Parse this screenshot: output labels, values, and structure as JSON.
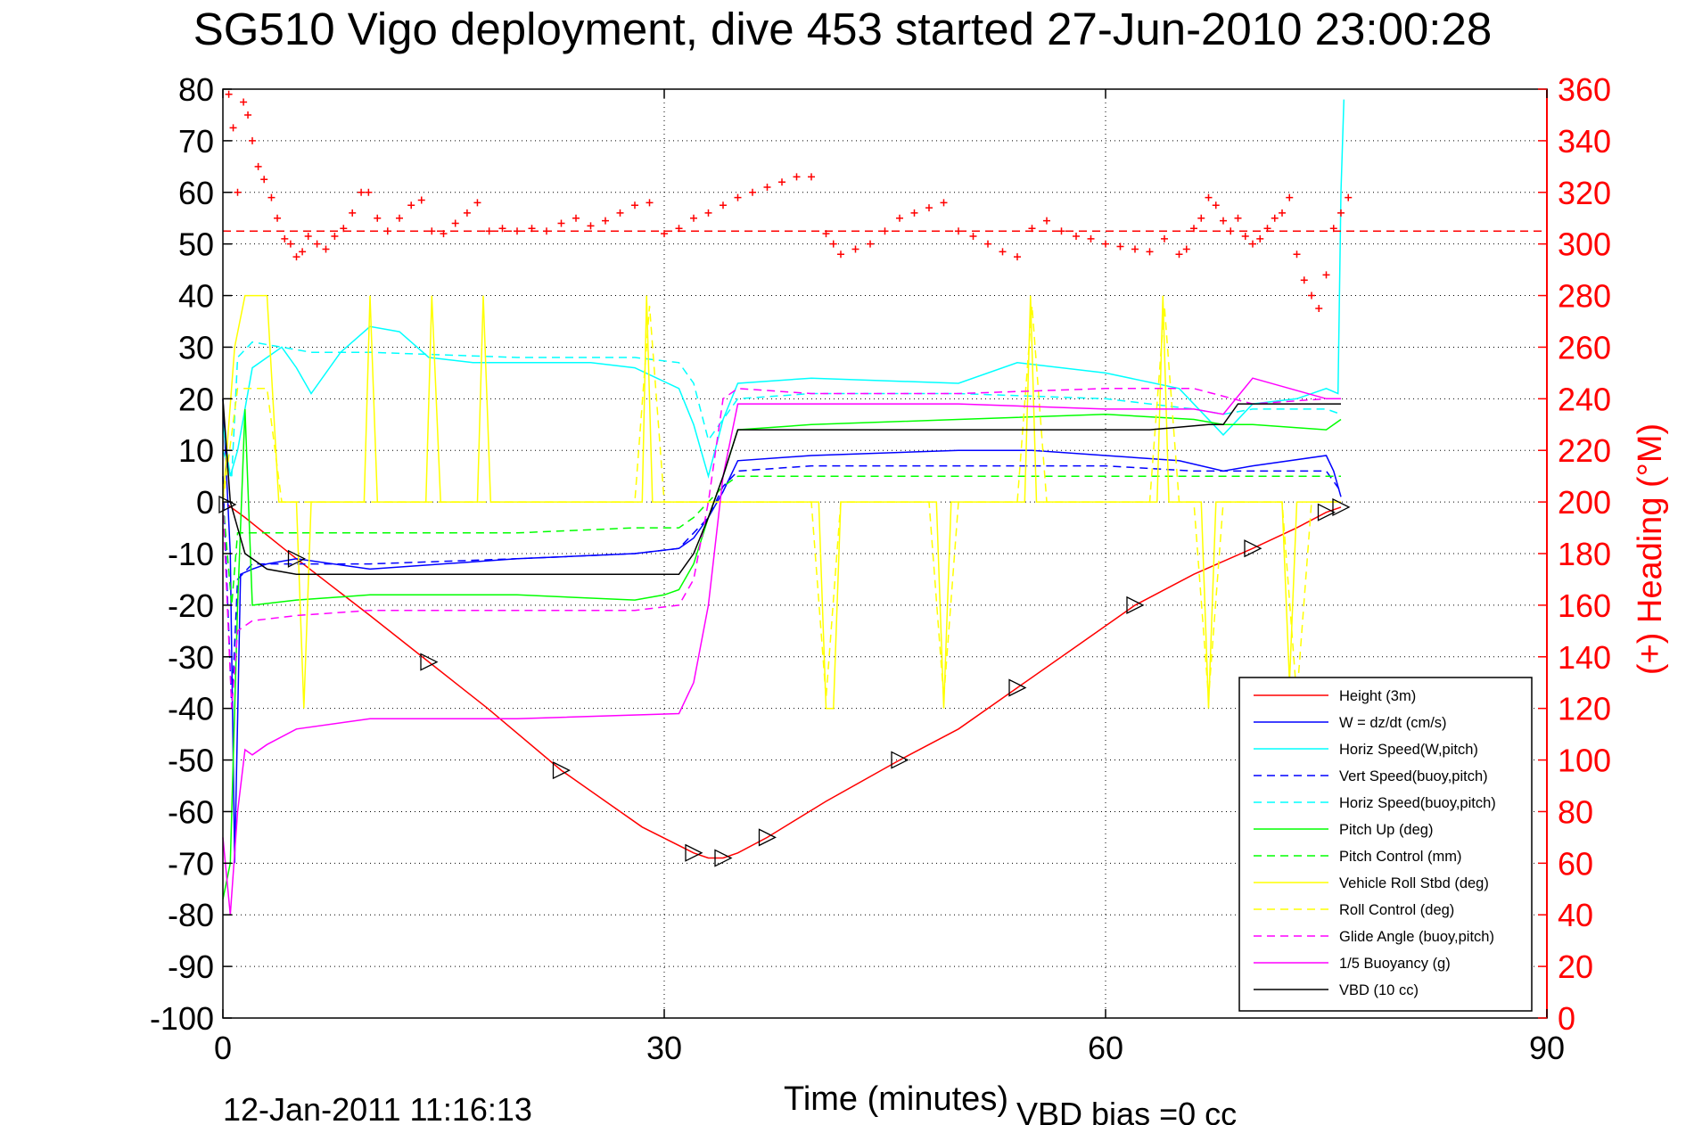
{
  "chart_data": {
    "type": "line",
    "title": "SG510 Vigo deployment, dive 453 started 27-Jun-2010 23:00:28",
    "xlabel": "Time (minutes)",
    "ylabel": "",
    "y2label": "(+) Heading (°M)",
    "xlim": [
      0,
      90
    ],
    "ylim": [
      -100,
      80
    ],
    "y2lim": [
      0,
      360
    ],
    "xticks": [
      0,
      30,
      60,
      90
    ],
    "yticks": [
      80,
      70,
      60,
      50,
      40,
      30,
      20,
      10,
      0,
      -10,
      -20,
      -30,
      -40,
      -50,
      -60,
      -70,
      -80,
      -90,
      -100
    ],
    "y2ticks": [
      360,
      340,
      320,
      300,
      280,
      260,
      240,
      220,
      200,
      180,
      160,
      140,
      120,
      100,
      80,
      60,
      40,
      20,
      0
    ],
    "grid": "dotted",
    "legend_position": "lower-right",
    "footer_left": "12-Jan-2011 11:16:13",
    "footer_right": "VBD bias =0 cc",
    "heading_mean": 305,
    "series": [
      {
        "name": "Height (3m)",
        "color": "#ff0000",
        "style": "solid",
        "x": [
          0.3,
          1.5,
          5,
          10,
          14,
          18,
          23,
          28.5,
          32,
          33,
          34,
          35,
          37,
          41,
          46,
          50,
          54,
          58,
          62,
          66,
          70,
          73,
          75,
          76
        ],
        "y": [
          -0.5,
          -3,
          -11,
          -22,
          -31,
          -40,
          -52,
          -63,
          -68,
          -69,
          -69,
          -68,
          -65,
          -58,
          -50,
          -44,
          -36,
          -28,
          -20,
          -14,
          -9,
          -5,
          -2,
          -1
        ]
      },
      {
        "name": "W = dz/dt (cm/s)",
        "color": "#0000ff",
        "style": "solid",
        "x": [
          0,
          0.5,
          0.8,
          1.2,
          2,
          3,
          5,
          10,
          20,
          28,
          31,
          32,
          33,
          34,
          35,
          40,
          50,
          55,
          60,
          65,
          68,
          70,
          75,
          75.5,
          76
        ],
        "y": [
          20,
          -10,
          -70,
          -14,
          -13,
          -12,
          -11,
          -13,
          -11,
          -10,
          -9,
          -7,
          -3,
          2,
          8,
          9,
          10,
          10,
          9,
          8,
          6,
          7,
          9,
          6,
          1
        ]
      },
      {
        "name": "Horiz Speed(W,pitch)",
        "color": "#00ffff",
        "style": "solid",
        "x": [
          0,
          0.5,
          1,
          2,
          4,
          5,
          6,
          8,
          10,
          12,
          14,
          17,
          20,
          25,
          28,
          31,
          32,
          33,
          34,
          35,
          40,
          50,
          54,
          60,
          65,
          68,
          70,
          73,
          75,
          75.8,
          76,
          76.2
        ],
        "y": [
          15,
          5,
          10,
          26,
          30,
          26,
          21,
          29,
          34,
          33,
          28,
          27,
          27,
          27,
          26,
          22,
          15,
          5,
          16,
          23,
          24,
          23,
          27,
          25,
          22,
          13,
          19,
          20,
          22,
          21,
          60,
          78
        ]
      },
      {
        "name": "Vert Speed(buoy,pitch)",
        "color": "#0000ff",
        "style": "dashed",
        "x": [
          0,
          0.6,
          1,
          2,
          5,
          10,
          20,
          28,
          31,
          33,
          34,
          35,
          40,
          50,
          60,
          66,
          70,
          75,
          76
        ],
        "y": [
          5,
          -40,
          -15,
          -12,
          -12,
          -12,
          -11,
          -10,
          -9,
          -3,
          3,
          6,
          7,
          7,
          7,
          6,
          6,
          6,
          2
        ]
      },
      {
        "name": "Horiz Speed(buoy,pitch)",
        "color": "#00ffff",
        "style": "dashed",
        "x": [
          0,
          0.6,
          1,
          2,
          4,
          6,
          10,
          20,
          28,
          31,
          32,
          33,
          34,
          35,
          40,
          50,
          60,
          66,
          68,
          70,
          75,
          76
        ],
        "y": [
          10,
          5,
          28,
          31,
          30,
          29,
          29,
          28,
          28,
          27,
          23,
          12,
          16,
          20,
          21,
          21,
          20,
          18,
          17,
          18,
          18,
          17
        ]
      },
      {
        "name": "Pitch Up (deg)",
        "color": "#00ff00",
        "style": "solid",
        "x": [
          0,
          0.5,
          1,
          1.5,
          2,
          5,
          10,
          20,
          28,
          30,
          31,
          32,
          33,
          34,
          35,
          40,
          50,
          60,
          66,
          68,
          70,
          75,
          76
        ],
        "y": [
          -77,
          -70,
          -20,
          18,
          -20,
          -19,
          -18,
          -18,
          -19,
          -18,
          -17,
          -12,
          -3,
          5,
          14,
          15,
          16,
          17,
          16,
          15,
          15,
          14,
          16
        ]
      },
      {
        "name": "Pitch Control (mm)",
        "color": "#00ff00",
        "style": "dashed",
        "x": [
          0,
          0.6,
          1,
          2,
          5,
          10,
          20,
          28,
          31,
          32,
          33,
          34,
          35,
          40,
          50,
          60,
          66,
          70,
          75,
          76
        ],
        "y": [
          0,
          -20,
          -6,
          -6,
          -6,
          -6,
          -6,
          -5,
          -5,
          -3,
          0,
          3,
          5,
          5,
          5,
          5,
          5,
          5,
          5,
          5
        ]
      },
      {
        "name": "Vehicle Roll Stbd (deg)",
        "color": "#ffff00",
        "style": "solid",
        "x": [
          0,
          0.8,
          1.5,
          3,
          3.8,
          4.3,
          5,
          5.5,
          6,
          9.6,
          10,
          10.5,
          11,
          13.8,
          14.2,
          14.8,
          17.3,
          17.7,
          18.2,
          28.5,
          28.8,
          29.2,
          32,
          33,
          34,
          40.5,
          41,
          41.5,
          42,
          48.5,
          49,
          49.5,
          54.5,
          54.9,
          55.3,
          63.5,
          63.9,
          64.3,
          66.5,
          67,
          67.5,
          72,
          72.5,
          73,
          76
        ],
        "y": [
          0,
          30,
          40,
          40,
          0,
          0,
          0,
          -40,
          0,
          0,
          40,
          0,
          0,
          0,
          40,
          0,
          0,
          40,
          0,
          0,
          40,
          0,
          0,
          0,
          0,
          0,
          -40,
          -40,
          0,
          0,
          -40,
          0,
          0,
          40,
          0,
          0,
          40,
          0,
          0,
          -40,
          0,
          0,
          -35,
          0,
          0
        ]
      },
      {
        "name": "Roll Control (deg)",
        "color": "#ffff00",
        "style": "dashed",
        "x": [
          0,
          1,
          1.5,
          3,
          4,
          5,
          10,
          14,
          18,
          28,
          29,
          30,
          40,
          41,
          42,
          48,
          49,
          50,
          54,
          55,
          56,
          63,
          64,
          65,
          66,
          67,
          68,
          72,
          73,
          74,
          76
        ],
        "y": [
          0,
          22,
          22,
          22,
          0,
          0,
          0,
          0,
          0,
          0,
          38,
          0,
          0,
          -38,
          0,
          0,
          -38,
          0,
          0,
          38,
          0,
          0,
          38,
          0,
          0,
          -38,
          0,
          0,
          -38,
          0,
          0
        ]
      },
      {
        "name": "Glide Angle (buoy,pitch)",
        "color": "#ff00ff",
        "style": "dashed",
        "x": [
          0,
          0.6,
          1,
          2,
          5,
          10,
          20,
          28,
          31,
          32,
          33,
          34,
          35,
          40,
          50,
          60,
          66,
          70,
          75,
          76
        ],
        "y": [
          0,
          -40,
          -25,
          -23,
          -22,
          -21,
          -21,
          -21,
          -20,
          -15,
          0,
          20,
          22,
          21,
          21,
          22,
          22,
          19,
          20,
          20
        ]
      },
      {
        "name": "1/5 Buoyancy (g)",
        "color": "#ff00ff",
        "style": "solid",
        "x": [
          0,
          0.5,
          1,
          1.5,
          2,
          3,
          5,
          10,
          20,
          31,
          32,
          33,
          34,
          35,
          40,
          50,
          60,
          66,
          68,
          70,
          75,
          76
        ],
        "y": [
          -65,
          -80,
          -60,
          -48,
          -49,
          -47,
          -44,
          -42,
          -42,
          -41,
          -35,
          -20,
          5,
          19,
          19,
          19,
          18,
          18,
          17,
          24,
          20,
          20
        ]
      },
      {
        "name": "VBD (10 cc)",
        "color": "#000000",
        "style": "solid",
        "x": [
          0,
          0.5,
          1,
          1.5,
          3,
          5,
          10,
          31,
          32,
          33,
          34,
          35,
          40,
          50,
          63,
          67,
          68,
          69,
          76
        ],
        "y": [
          20,
          0,
          -5,
          -10,
          -13,
          -14,
          -14,
          -14,
          -10,
          -3,
          5,
          14,
          14,
          14,
          14,
          15,
          15,
          19,
          19
        ]
      }
    ],
    "heading_scatter": {
      "name": "(+) Heading",
      "color": "#ff0000",
      "marker": "+",
      "x": [
        0.4,
        0.7,
        1,
        1.4,
        1.7,
        2,
        2.4,
        2.8,
        3.3,
        3.7,
        4.2,
        4.6,
        5,
        5.4,
        5.8,
        6.4,
        7,
        7.6,
        8.2,
        8.8,
        9.4,
        9.9,
        10.5,
        11.2,
        12,
        12.8,
        13.5,
        14.2,
        15,
        15.8,
        16.6,
        17.3,
        18.1,
        19,
        20,
        21,
        22,
        23,
        24,
        25,
        26,
        27,
        28,
        29,
        30,
        31,
        32,
        33,
        34,
        35,
        36,
        37,
        38,
        39,
        40,
        41,
        41.5,
        42,
        43,
        44,
        45,
        46,
        47,
        48,
        49,
        50,
        51,
        52,
        53,
        54,
        55,
        56,
        57,
        58,
        59,
        60,
        61,
        62,
        63,
        64,
        65,
        65.5,
        66,
        66.5,
        67,
        67.5,
        68,
        68.5,
        69,
        69.5,
        70,
        70.5,
        71,
        71.5,
        72,
        72.5,
        73,
        73.5,
        74,
        74.5,
        75,
        75.5,
        76,
        76.5
      ],
      "y": [
        358,
        345,
        320,
        355,
        350,
        340,
        330,
        325,
        318,
        310,
        302,
        300,
        295,
        297,
        303,
        300,
        298,
        303,
        306,
        312,
        320,
        320,
        310,
        305,
        310,
        315,
        317,
        305,
        304,
        308,
        312,
        316,
        305,
        306,
        305,
        306,
        305,
        308,
        310,
        307,
        309,
        312,
        315,
        316,
        304,
        306,
        310,
        312,
        315,
        318,
        320,
        322,
        324,
        326,
        326,
        304,
        300,
        296,
        298,
        300,
        305,
        310,
        312,
        314,
        316,
        305,
        303,
        300,
        297,
        295,
        306,
        309,
        305,
        303,
        302,
        300,
        299,
        298,
        297,
        302,
        296,
        298,
        306,
        310,
        318,
        315,
        309,
        305,
        310,
        303,
        300,
        302,
        306,
        310,
        312,
        318,
        296,
        286,
        280,
        275,
        288,
        306,
        312,
        318
      ]
    }
  }
}
